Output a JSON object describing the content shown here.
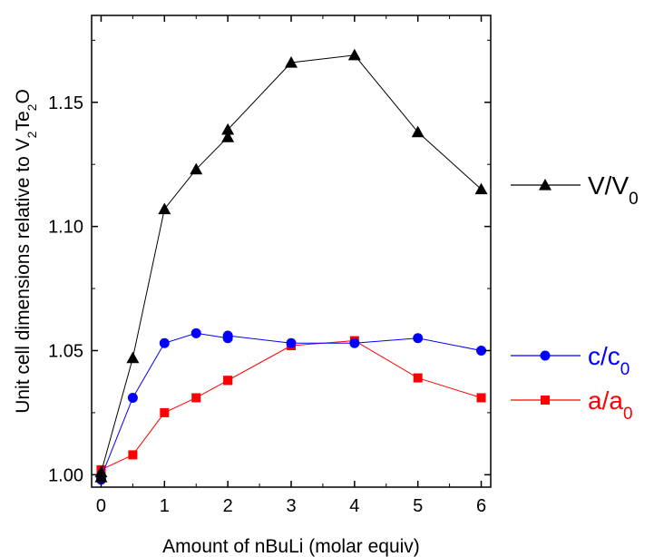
{
  "chart_data": {
    "type": "line",
    "title": "",
    "xlabel": "Amount of nBuLi (molar equiv)",
    "ylabel": {
      "parts": [
        {
          "text": "Unit cell dimensions relative to V",
          "sub": false
        },
        {
          "text": "2",
          "sub": true
        },
        {
          "text": "Te",
          "sub": false
        },
        {
          "text": "2",
          "sub": true
        },
        {
          "text": "O",
          "sub": false
        }
      ]
    },
    "xlim": [
      -0.15,
      6.15
    ],
    "ylim": [
      0.995,
      1.185
    ],
    "xticks": [
      0,
      1,
      2,
      3,
      4,
      5,
      6
    ],
    "xtick_labels": [
      "0",
      "1",
      "2",
      "3",
      "4",
      "5",
      "6"
    ],
    "yticks": [
      1.0,
      1.05,
      1.1,
      1.15
    ],
    "ytick_labels": [
      "1.00",
      "1.05",
      "1.10",
      "1.15"
    ],
    "grid": false,
    "legend_position": "right",
    "series": [
      {
        "name": "V/V0",
        "label_main": "V/V",
        "label_sub": "0",
        "color": "#000000",
        "marker": "triangle",
        "x": [
          0,
          0,
          0.5,
          1,
          1.5,
          2,
          2,
          3,
          4,
          5,
          6
        ],
        "y": [
          0.999,
          1.001,
          1.047,
          1.107,
          1.123,
          1.136,
          1.139,
          1.166,
          1.169,
          1.138,
          1.115
        ]
      },
      {
        "name": "c/c0",
        "label_main": "c/c",
        "label_sub": "0",
        "color": "#0000ff",
        "marker": "circle",
        "x": [
          0,
          0,
          0.5,
          1,
          1.5,
          2,
          2,
          3,
          4,
          5,
          6
        ],
        "y": [
          0.998,
          0.999,
          1.031,
          1.053,
          1.057,
          1.055,
          1.056,
          1.053,
          1.053,
          1.055,
          1.05
        ]
      },
      {
        "name": "a/a0",
        "label_main": "a/a",
        "label_sub": "0",
        "color": "#ff0000",
        "marker": "square",
        "x": [
          0,
          0,
          0.5,
          1,
          1.5,
          2,
          2,
          3,
          4,
          5,
          6
        ],
        "y": [
          1.001,
          1.002,
          1.008,
          1.025,
          1.031,
          1.038,
          1.038,
          1.052,
          1.054,
          1.039,
          1.031
        ]
      }
    ]
  }
}
